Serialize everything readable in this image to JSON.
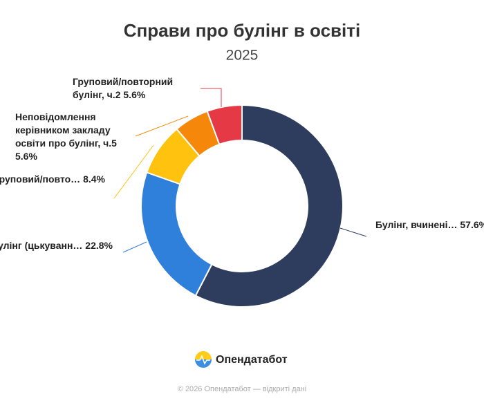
{
  "chart_data": {
    "type": "donut",
    "title": "Справи про булінг в освіті",
    "subtitle": "2025",
    "categories": [
      "Булінг, вчинені…",
      "Булінг (цькуванн…",
      "Груповий/повто…",
      "Неповідомлення керівником закладу освіти про булінг, ч.5",
      "Груповий/повторний булінг, ч.2"
    ],
    "values": [
      57.6,
      22.8,
      8.4,
      5.6,
      5.6
    ],
    "value_labels": [
      "57.6%",
      "22.8%",
      "8.4%",
      "5.6%",
      "5.6%"
    ],
    "colors": [
      "#2e3d5e",
      "#2f80db",
      "#ffc20e",
      "#f5880a",
      "#e63946"
    ],
    "brand": "Опендатабот",
    "footer": "© 2026 Опендатабот — відкриті дані"
  }
}
